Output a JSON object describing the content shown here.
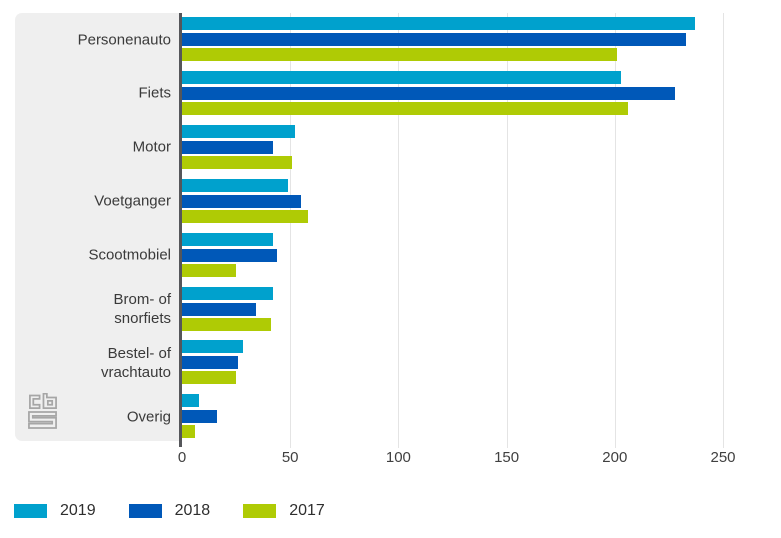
{
  "chart_data": {
    "type": "bar",
    "orientation": "horizontal",
    "categories": [
      "Personenauto",
      "Fiets",
      "Motor",
      "Voetganger",
      "Scootmobiel",
      "Brom- of snorfiets",
      "Bestel- of vrachtauto",
      "Overig"
    ],
    "series": [
      {
        "name": "2019",
        "color": "#00a1cd",
        "values": [
          237,
          203,
          52,
          49,
          42,
          42,
          28,
          8
        ]
      },
      {
        "name": "2018",
        "color": "#0058b8",
        "values": [
          233,
          228,
          42,
          55,
          44,
          34,
          26,
          16
        ]
      },
      {
        "name": "2017",
        "color": "#afcb05",
        "values": [
          201,
          206,
          51,
          58,
          25,
          41,
          25,
          6
        ]
      }
    ],
    "xlim": [
      0,
      250
    ],
    "xticks": [
      0,
      50,
      100,
      150,
      200,
      250
    ],
    "grid": true,
    "legend_position": "bottom-left",
    "title": "",
    "xlabel": "",
    "ylabel": ""
  },
  "branding": {
    "logo_name": "cbs-logo"
  },
  "style": {
    "panel_bg": "#efefef",
    "axis_color": "#55565a",
    "grid_color": "#e4e4e4",
    "category_text_color": "#3a3a3a",
    "tick_text_color": "#404040",
    "legend_text_color": "#2e2e2e",
    "logo_color": "#a6a6a6"
  }
}
